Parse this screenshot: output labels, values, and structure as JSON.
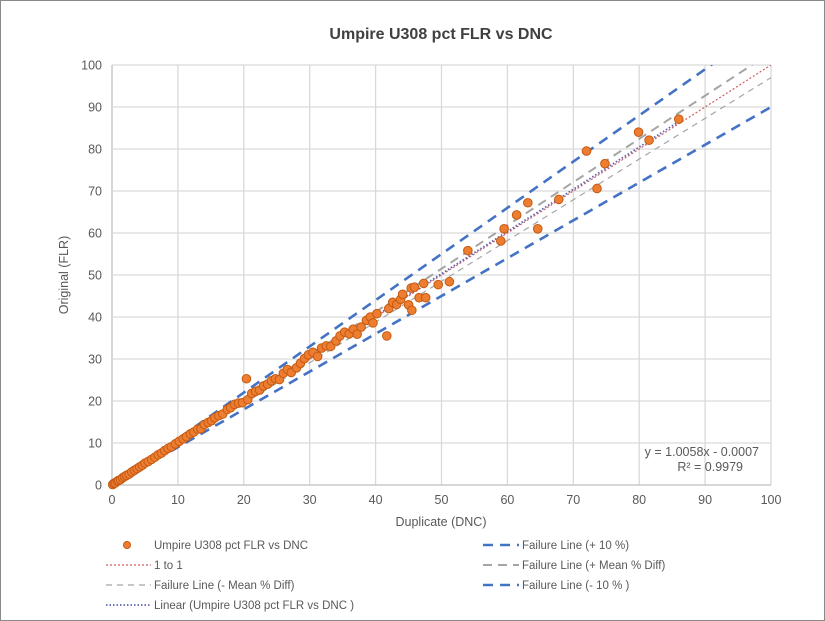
{
  "chart_data": {
    "type": "scatter",
    "title": "Umpire U308 pct FLR vs DNC",
    "xlabel": "Duplicate (DNC)",
    "ylabel": "Original (FLR)",
    "xlim": [
      0,
      100
    ],
    "ylim": [
      0,
      100
    ],
    "xticks": [
      0,
      10,
      20,
      30,
      40,
      50,
      60,
      70,
      80,
      90,
      100
    ],
    "yticks": [
      0,
      10,
      20,
      30,
      40,
      50,
      60,
      70,
      80,
      90,
      100
    ],
    "grid": true,
    "legend_position": "bottom",
    "trendline_equation": "y = 1.0058x - 0.0007",
    "r_squared": "R² = 0.9979",
    "colors": {
      "points": "#ED7D31",
      "point_edge": "#C55A11",
      "failure_10": "#4472C4",
      "failure_mean": "#A5A5A5",
      "one_to_one": "#D06060",
      "linear": "#5A62B0"
    },
    "series": [
      {
        "name": "Umpire U308 pct FLR vs DNC",
        "kind": "points",
        "points": [
          [
            0.1,
            0.1
          ],
          [
            0.3,
            0.4
          ],
          [
            0.5,
            0.5
          ],
          [
            0.8,
            0.9
          ],
          [
            1.0,
            1.1
          ],
          [
            1.3,
            1.3
          ],
          [
            1.6,
            1.7
          ],
          [
            1.9,
            2.0
          ],
          [
            2.2,
            2.3
          ],
          [
            2.6,
            2.6
          ],
          [
            3.0,
            3.1
          ],
          [
            3.4,
            3.5
          ],
          [
            3.8,
            3.9
          ],
          [
            4.2,
            4.3
          ],
          [
            4.6,
            4.7
          ],
          [
            5.0,
            5.2
          ],
          [
            5.5,
            5.6
          ],
          [
            6.0,
            6.1
          ],
          [
            6.5,
            6.6
          ],
          [
            7.0,
            7.2
          ],
          [
            7.5,
            7.6
          ],
          [
            8.0,
            8.2
          ],
          [
            8.5,
            8.7
          ],
          [
            9.0,
            9.1
          ],
          [
            9.6,
            9.8
          ],
          [
            10.2,
            10.4
          ],
          [
            10.8,
            11.0
          ],
          [
            11.3,
            11.5
          ],
          [
            11.9,
            12.2
          ],
          [
            12.4,
            12.6
          ],
          [
            13.0,
            13.3
          ],
          [
            13.5,
            13.4
          ],
          [
            14.0,
            14.4
          ],
          [
            14.6,
            14.9
          ],
          [
            15.1,
            15.3
          ],
          [
            15.6,
            16.0
          ],
          [
            16.2,
            16.5
          ],
          [
            16.8,
            16.9
          ],
          [
            17.5,
            18.0
          ],
          [
            18.0,
            18.4
          ],
          [
            18.6,
            19.2
          ],
          [
            19.2,
            19.5
          ],
          [
            19.8,
            19.6
          ],
          [
            20.4,
            25.3
          ],
          [
            20.6,
            20.3
          ],
          [
            21.2,
            21.8
          ],
          [
            21.8,
            22.3
          ],
          [
            22.4,
            22.6
          ],
          [
            23.0,
            23.6
          ],
          [
            23.6,
            24.0
          ],
          [
            24.2,
            24.8
          ],
          [
            24.8,
            25.3
          ],
          [
            25.4,
            25.1
          ],
          [
            26.0,
            26.6
          ],
          [
            26.6,
            27.5
          ],
          [
            27.2,
            26.8
          ],
          [
            28.0,
            27.9
          ],
          [
            28.6,
            29.0
          ],
          [
            29.2,
            30.1
          ],
          [
            29.8,
            31.0
          ],
          [
            30.5,
            31.6
          ],
          [
            31.2,
            30.6
          ],
          [
            31.8,
            32.6
          ],
          [
            32.5,
            33.1
          ],
          [
            33.2,
            33.0
          ],
          [
            34.0,
            34.3
          ],
          [
            34.6,
            35.5
          ],
          [
            35.3,
            36.4
          ],
          [
            36.0,
            36.0
          ],
          [
            36.6,
            37.1
          ],
          [
            37.2,
            35.9
          ],
          [
            37.8,
            37.6
          ],
          [
            38.6,
            39.2
          ],
          [
            39.2,
            40.0
          ],
          [
            39.6,
            38.6
          ],
          [
            40.2,
            40.8
          ],
          [
            41.7,
            35.5
          ],
          [
            42.0,
            42.0
          ],
          [
            42.6,
            43.5
          ],
          [
            43.2,
            43.0
          ],
          [
            43.8,
            44.2
          ],
          [
            44.1,
            45.4
          ],
          [
            45.0,
            42.9
          ],
          [
            45.4,
            46.9
          ],
          [
            45.5,
            41.6
          ],
          [
            45.9,
            47.1
          ],
          [
            46.6,
            44.6
          ],
          [
            47.3,
            48.0
          ],
          [
            47.6,
            44.6
          ],
          [
            49.5,
            47.7
          ],
          [
            51.2,
            48.4
          ],
          [
            54.0,
            55.8
          ],
          [
            59.0,
            58.1
          ],
          [
            59.5,
            61.0
          ],
          [
            61.4,
            64.3
          ],
          [
            63.1,
            67.2
          ],
          [
            64.6,
            61.0
          ],
          [
            67.8,
            68.0
          ],
          [
            72.0,
            79.5
          ],
          [
            73.6,
            70.6
          ],
          [
            74.8,
            76.5
          ],
          [
            79.9,
            84.0
          ],
          [
            81.5,
            82.1
          ],
          [
            86.0,
            87.1
          ]
        ]
      },
      {
        "name": "1 to 1",
        "kind": "line",
        "slope": 1.0,
        "intercept": 0
      },
      {
        "name": "Failure Line (+ Mean % Diff)",
        "kind": "line",
        "slope": 1.03,
        "intercept": 0
      },
      {
        "name": "Failure Line (- Mean % Diff)",
        "kind": "line",
        "slope": 0.97,
        "intercept": 0
      },
      {
        "name": "Failure Line (- 10 % )",
        "kind": "line",
        "slope": 0.9,
        "intercept": 0
      },
      {
        "name": "Failure Line (+ 10 %)",
        "kind": "line",
        "slope": 1.1,
        "intercept": 0
      },
      {
        "name": "Linear (Umpire U308 pct FLR vs DNC )",
        "kind": "trend",
        "slope": 1.0058,
        "intercept": -0.0007,
        "xrange": [
          0,
          86
        ]
      }
    ]
  }
}
